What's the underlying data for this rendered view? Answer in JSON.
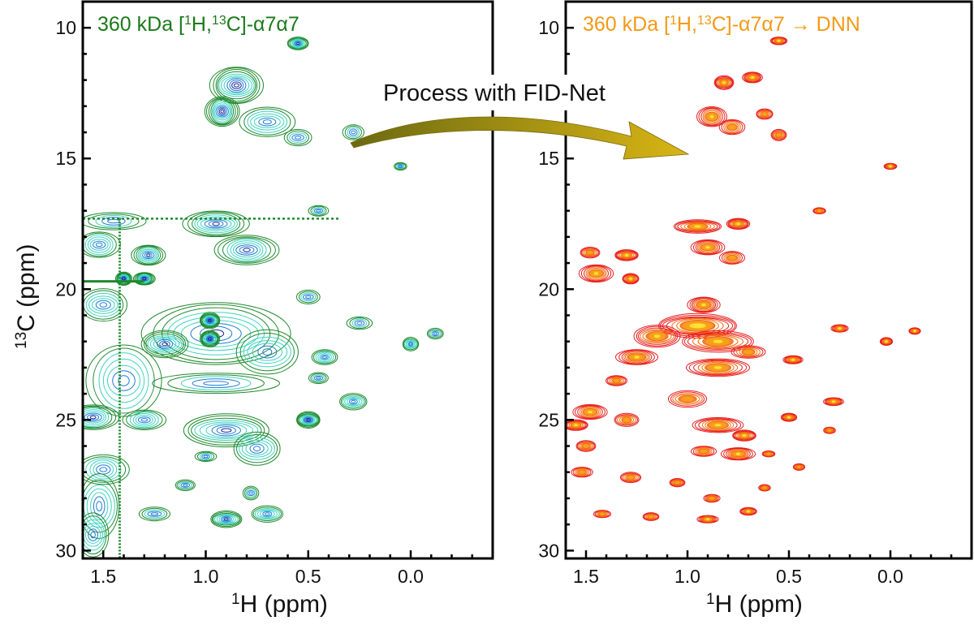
{
  "chart_data": [
    {
      "type": "contour",
      "id": "left",
      "title_parts": {
        "prefix": "360 kDa [",
        "sup1": "1",
        "mid1": "H,",
        "sup2": "13",
        "mid2": "C]-α7α7",
        "suffix": ""
      },
      "title_color": "#1a7a1a",
      "xlabel_sup": "1",
      "xlabel": "H (ppm)",
      "ylabel_sup": "13",
      "ylabel": "C (ppm)",
      "xlim": [
        1.6,
        -0.4
      ],
      "ylim": [
        30.3,
        9.0
      ],
      "x_ticks": [
        1.5,
        1.0,
        0.5,
        0.0
      ],
      "x_tick_labels": [
        "1.5",
        "1.0",
        "0.5",
        "0.0"
      ],
      "y_ticks": [
        10,
        15,
        20,
        25,
        30
      ],
      "y_tick_labels": [
        "10",
        "15",
        "20",
        "25",
        "30"
      ],
      "colors": {
        "outer": "#1e8a2e",
        "mid": "#3fd3c0",
        "inner": "#1c7cd6",
        "core": "#1a2a9a"
      },
      "peaks": [
        {
          "x": 0.55,
          "y": 10.6,
          "w": 0.05,
          "h": 0.25,
          "level": 3
        },
        {
          "x": 0.85,
          "y": 12.2,
          "w": 0.13,
          "h": 0.7,
          "level": 4
        },
        {
          "x": 0.92,
          "y": 13.2,
          "w": 0.08,
          "h": 0.6,
          "level": 4
        },
        {
          "x": 0.7,
          "y": 13.6,
          "w": 0.14,
          "h": 0.55,
          "level": 2
        },
        {
          "x": 0.55,
          "y": 14.2,
          "w": 0.07,
          "h": 0.3,
          "level": 1
        },
        {
          "x": 0.28,
          "y": 14.0,
          "w": 0.05,
          "h": 0.3,
          "level": 1
        },
        {
          "x": 0.95,
          "y": 17.5,
          "w": 0.16,
          "h": 0.5,
          "level": 3
        },
        {
          "x": 0.8,
          "y": 18.5,
          "w": 0.15,
          "h": 0.6,
          "level": 3
        },
        {
          "x": 0.45,
          "y": 17.0,
          "w": 0.05,
          "h": 0.2,
          "level": 1
        },
        {
          "x": 1.45,
          "y": 17.4,
          "w": 0.15,
          "h": 0.35,
          "level": 1
        },
        {
          "x": 1.28,
          "y": 18.7,
          "w": 0.08,
          "h": 0.4,
          "level": 3
        },
        {
          "x": 1.52,
          "y": 18.3,
          "w": 0.1,
          "h": 0.5,
          "level": 2
        },
        {
          "x": 1.4,
          "y": 19.6,
          "w": 0.04,
          "h": 0.25,
          "level": 4
        },
        {
          "x": 1.3,
          "y": 19.6,
          "w": 0.05,
          "h": 0.25,
          "level": 4
        },
        {
          "x": 1.5,
          "y": 20.6,
          "w": 0.12,
          "h": 0.6,
          "level": 2
        },
        {
          "x": 0.5,
          "y": 20.3,
          "w": 0.06,
          "h": 0.25,
          "level": 1
        },
        {
          "x": 0.25,
          "y": 21.3,
          "w": 0.06,
          "h": 0.25,
          "level": 1
        },
        {
          "x": 0.95,
          "y": 21.7,
          "w": 0.36,
          "h": 1.2,
          "level": 3
        },
        {
          "x": 0.98,
          "y": 21.2,
          "w": 0.05,
          "h": 0.3,
          "level": 4
        },
        {
          "x": 0.98,
          "y": 21.9,
          "w": 0.05,
          "h": 0.3,
          "level": 4
        },
        {
          "x": 1.2,
          "y": 22.1,
          "w": 0.12,
          "h": 0.5,
          "level": 3
        },
        {
          "x": 0.7,
          "y": 22.4,
          "w": 0.16,
          "h": 0.8,
          "level": 2
        },
        {
          "x": 1.4,
          "y": 23.5,
          "w": 0.18,
          "h": 1.4,
          "level": 2
        },
        {
          "x": 0.42,
          "y": 22.6,
          "w": 0.06,
          "h": 0.3,
          "level": 2
        },
        {
          "x": 0.0,
          "y": 22.1,
          "w": 0.04,
          "h": 0.25,
          "level": 2
        },
        {
          "x": -0.12,
          "y": 21.7,
          "w": 0.04,
          "h": 0.2,
          "level": 1
        },
        {
          "x": 0.45,
          "y": 23.4,
          "w": 0.05,
          "h": 0.2,
          "level": 1
        },
        {
          "x": 0.95,
          "y": 23.6,
          "w": 0.3,
          "h": 0.4,
          "level": 1
        },
        {
          "x": 0.28,
          "y": 24.3,
          "w": 0.07,
          "h": 0.3,
          "level": 2
        },
        {
          "x": 1.55,
          "y": 24.9,
          "w": 0.12,
          "h": 0.5,
          "level": 3
        },
        {
          "x": 1.3,
          "y": 25.0,
          "w": 0.1,
          "h": 0.4,
          "level": 2
        },
        {
          "x": 0.9,
          "y": 25.4,
          "w": 0.22,
          "h": 0.6,
          "level": 3
        },
        {
          "x": 0.75,
          "y": 26.1,
          "w": 0.12,
          "h": 0.6,
          "level": 2
        },
        {
          "x": 0.5,
          "y": 25.0,
          "w": 0.06,
          "h": 0.3,
          "level": 4
        },
        {
          "x": 1.5,
          "y": 26.9,
          "w": 0.12,
          "h": 0.6,
          "level": 2
        },
        {
          "x": 1.52,
          "y": 28.3,
          "w": 0.1,
          "h": 1.2,
          "level": 2
        },
        {
          "x": 1.55,
          "y": 29.4,
          "w": 0.08,
          "h": 0.8,
          "level": 2
        },
        {
          "x": 1.25,
          "y": 28.6,
          "w": 0.08,
          "h": 0.25,
          "level": 1
        },
        {
          "x": 0.9,
          "y": 28.8,
          "w": 0.08,
          "h": 0.3,
          "level": 3
        },
        {
          "x": 0.7,
          "y": 28.6,
          "w": 0.08,
          "h": 0.3,
          "level": 2
        },
        {
          "x": 1.1,
          "y": 27.5,
          "w": 0.05,
          "h": 0.2,
          "level": 1
        },
        {
          "x": 0.78,
          "y": 27.8,
          "w": 0.04,
          "h": 0.25,
          "level": 1
        },
        {
          "x": 1.0,
          "y": 26.4,
          "w": 0.05,
          "h": 0.2,
          "level": 1
        },
        {
          "x": 0.05,
          "y": 15.3,
          "w": 0.03,
          "h": 0.15,
          "level": 1
        }
      ]
    },
    {
      "type": "contour",
      "id": "right",
      "title_parts": {
        "prefix": "360 kDa [",
        "sup1": "1",
        "mid1": "H,",
        "sup2": "13",
        "mid2": "C]-α7α7",
        "suffix": " → DNN"
      },
      "title_color": "#f39a17",
      "xlabel_sup": "1",
      "xlabel": "H (ppm)",
      "ylabel_sup": "",
      "ylabel": "",
      "xlim": [
        1.6,
        -0.4
      ],
      "ylim": [
        30.3,
        9.0
      ],
      "x_ticks": [
        1.5,
        1.0,
        0.5,
        0.0
      ],
      "x_tick_labels": [
        "1.5",
        "1.0",
        "0.5",
        "0.0"
      ],
      "y_ticks": [
        10,
        15,
        20,
        25,
        30
      ],
      "y_tick_labels": [
        "10",
        "15",
        "20",
        "25",
        "30"
      ],
      "colors": {
        "outer": "#e81e1e",
        "mid": "#f56a10",
        "inner": "#f7a21a",
        "core": "#fbe43a"
      },
      "peaks": [
        {
          "x": 0.55,
          "y": 10.5,
          "w": 0.04,
          "h": 0.15,
          "level": 3
        },
        {
          "x": 0.82,
          "y": 12.1,
          "w": 0.05,
          "h": 0.25,
          "level": 3
        },
        {
          "x": 0.68,
          "y": 11.9,
          "w": 0.05,
          "h": 0.2,
          "level": 3
        },
        {
          "x": 0.88,
          "y": 13.4,
          "w": 0.07,
          "h": 0.4,
          "level": 3
        },
        {
          "x": 0.78,
          "y": 13.8,
          "w": 0.06,
          "h": 0.3,
          "level": 2
        },
        {
          "x": 0.62,
          "y": 13.3,
          "w": 0.04,
          "h": 0.2,
          "level": 2
        },
        {
          "x": 0.55,
          "y": 14.1,
          "w": 0.04,
          "h": 0.2,
          "level": 2
        },
        {
          "x": 0.0,
          "y": 15.3,
          "w": 0.03,
          "h": 0.12,
          "level": 3
        },
        {
          "x": 0.95,
          "y": 17.6,
          "w": 0.12,
          "h": 0.25,
          "level": 3
        },
        {
          "x": 0.75,
          "y": 17.5,
          "w": 0.06,
          "h": 0.2,
          "level": 3
        },
        {
          "x": 0.9,
          "y": 18.4,
          "w": 0.08,
          "h": 0.3,
          "level": 3
        },
        {
          "x": 0.78,
          "y": 18.8,
          "w": 0.06,
          "h": 0.25,
          "level": 2
        },
        {
          "x": 1.3,
          "y": 18.7,
          "w": 0.06,
          "h": 0.2,
          "level": 3
        },
        {
          "x": 1.48,
          "y": 18.6,
          "w": 0.05,
          "h": 0.2,
          "level": 2
        },
        {
          "x": 1.45,
          "y": 19.4,
          "w": 0.08,
          "h": 0.35,
          "level": 3
        },
        {
          "x": 1.28,
          "y": 19.6,
          "w": 0.04,
          "h": 0.2,
          "level": 3
        },
        {
          "x": 0.35,
          "y": 17.0,
          "w": 0.03,
          "h": 0.12,
          "level": 2
        },
        {
          "x": 0.92,
          "y": 20.6,
          "w": 0.08,
          "h": 0.3,
          "level": 3
        },
        {
          "x": 0.95,
          "y": 21.4,
          "w": 0.2,
          "h": 0.45,
          "level": 4
        },
        {
          "x": 0.85,
          "y": 22.0,
          "w": 0.18,
          "h": 0.4,
          "level": 3
        },
        {
          "x": 1.15,
          "y": 21.8,
          "w": 0.12,
          "h": 0.4,
          "level": 3
        },
        {
          "x": 1.25,
          "y": 22.6,
          "w": 0.1,
          "h": 0.3,
          "level": 3
        },
        {
          "x": 0.85,
          "y": 23.0,
          "w": 0.15,
          "h": 0.35,
          "level": 3
        },
        {
          "x": 0.7,
          "y": 22.4,
          "w": 0.08,
          "h": 0.25,
          "level": 2
        },
        {
          "x": 0.48,
          "y": 22.7,
          "w": 0.05,
          "h": 0.15,
          "level": 3
        },
        {
          "x": 0.25,
          "y": 21.5,
          "w": 0.04,
          "h": 0.15,
          "level": 3
        },
        {
          "x": 0.02,
          "y": 22.0,
          "w": 0.03,
          "h": 0.15,
          "level": 3
        },
        {
          "x": -0.12,
          "y": 21.6,
          "w": 0.03,
          "h": 0.12,
          "level": 3
        },
        {
          "x": 0.28,
          "y": 24.3,
          "w": 0.05,
          "h": 0.15,
          "level": 3
        },
        {
          "x": 1.48,
          "y": 24.7,
          "w": 0.08,
          "h": 0.3,
          "level": 3
        },
        {
          "x": 1.55,
          "y": 25.2,
          "w": 0.06,
          "h": 0.2,
          "level": 3
        },
        {
          "x": 1.3,
          "y": 25.0,
          "w": 0.06,
          "h": 0.25,
          "level": 2
        },
        {
          "x": 1.0,
          "y": 24.2,
          "w": 0.1,
          "h": 0.3,
          "level": 2
        },
        {
          "x": 0.85,
          "y": 25.2,
          "w": 0.12,
          "h": 0.3,
          "level": 3
        },
        {
          "x": 0.72,
          "y": 25.6,
          "w": 0.06,
          "h": 0.2,
          "level": 3
        },
        {
          "x": 0.5,
          "y": 24.9,
          "w": 0.04,
          "h": 0.15,
          "level": 3
        },
        {
          "x": 0.75,
          "y": 26.3,
          "w": 0.08,
          "h": 0.25,
          "level": 3
        },
        {
          "x": 0.92,
          "y": 26.2,
          "w": 0.06,
          "h": 0.2,
          "level": 2
        },
        {
          "x": 0.6,
          "y": 26.3,
          "w": 0.03,
          "h": 0.12,
          "level": 2
        },
        {
          "x": 0.45,
          "y": 26.8,
          "w": 0.03,
          "h": 0.12,
          "level": 2
        },
        {
          "x": 0.3,
          "y": 25.4,
          "w": 0.03,
          "h": 0.12,
          "level": 2
        },
        {
          "x": 1.52,
          "y": 27.0,
          "w": 0.05,
          "h": 0.2,
          "level": 2
        },
        {
          "x": 1.28,
          "y": 27.2,
          "w": 0.05,
          "h": 0.2,
          "level": 2
        },
        {
          "x": 1.05,
          "y": 27.4,
          "w": 0.04,
          "h": 0.15,
          "level": 2
        },
        {
          "x": 0.88,
          "y": 28.0,
          "w": 0.04,
          "h": 0.15,
          "level": 2
        },
        {
          "x": 1.42,
          "y": 28.6,
          "w": 0.04,
          "h": 0.15,
          "level": 2
        },
        {
          "x": 1.18,
          "y": 28.7,
          "w": 0.04,
          "h": 0.15,
          "level": 2
        },
        {
          "x": 0.9,
          "y": 28.8,
          "w": 0.05,
          "h": 0.15,
          "level": 3
        },
        {
          "x": 0.7,
          "y": 28.5,
          "w": 0.04,
          "h": 0.15,
          "level": 3
        },
        {
          "x": 1.35,
          "y": 23.5,
          "w": 0.05,
          "h": 0.2,
          "level": 2
        },
        {
          "x": 1.5,
          "y": 26.0,
          "w": 0.05,
          "h": 0.2,
          "level": 2
        },
        {
          "x": 0.62,
          "y": 27.6,
          "w": 0.03,
          "h": 0.12,
          "level": 2
        }
      ]
    }
  ],
  "annotation": {
    "label": "Process with FID-Net",
    "arrow_color": "#b8a010",
    "icon": "curved-arrow-icon"
  }
}
